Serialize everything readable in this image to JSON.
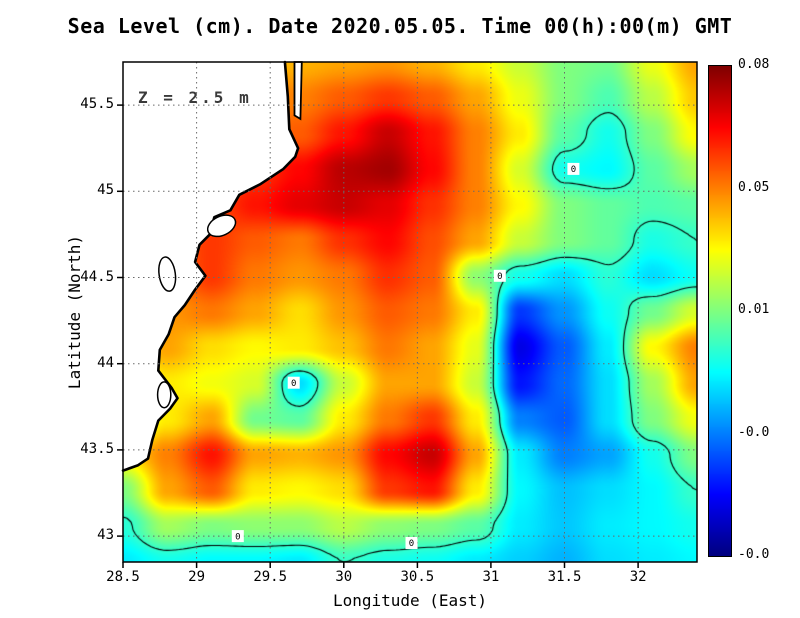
{
  "chart_data": {
    "type": "heatmap",
    "title": "Sea Level (cm). Date 2020.05.05. Time 00(h):00(m) GMT",
    "annotation": "Z = 2.5 m",
    "xlabel": "Longitude (East)",
    "ylabel": "Latitude (North)",
    "x_ticks": [
      "28.5",
      "29",
      "29.5",
      "30",
      "30.5",
      "31",
      "31.5",
      "32"
    ],
    "y_ticks": [
      "45.5",
      "45",
      "44.5",
      "44",
      "43.5",
      "43"
    ],
    "x_range": [
      28.5,
      32.4
    ],
    "y_range": [
      42.85,
      45.75
    ],
    "grid": true,
    "colormap": "jet",
    "colorbar": {
      "labels": [
        "0.08",
        "0.05",
        "0.01",
        "-0.0",
        "-0.0"
      ],
      "vmin": -0.06,
      "vmax": 0.08
    },
    "values": [
      [
        0.035,
        0.035,
        0.035,
        0.036,
        0.038,
        0.04,
        0.042,
        0.038,
        0.03,
        0.02,
        0.01,
        0.008,
        0.025,
        0.04
      ],
      [
        0.035,
        0.038,
        0.04,
        0.042,
        0.045,
        0.05,
        0.055,
        0.05,
        0.04,
        0.025,
        0.01,
        0.003,
        0.018,
        0.035
      ],
      [
        0.038,
        0.04,
        0.042,
        0.045,
        0.05,
        0.06,
        0.07,
        0.06,
        0.045,
        0.03,
        0.005,
        -0.005,
        0.01,
        0.028
      ],
      [
        0.04,
        0.042,
        0.048,
        0.055,
        0.062,
        0.072,
        0.075,
        0.062,
        0.045,
        0.022,
        -0.005,
        -0.008,
        0.005,
        0.015
      ],
      [
        0.042,
        0.045,
        0.052,
        0.06,
        0.066,
        0.07,
        0.066,
        0.056,
        0.045,
        0.028,
        0.01,
        0.006,
        0.003,
        0.005
      ],
      [
        0.045,
        0.048,
        0.055,
        0.05,
        0.046,
        0.056,
        0.062,
        0.052,
        0.04,
        0.02,
        0.01,
        0.006,
        -0.004,
        0.0
      ],
      [
        0.04,
        0.045,
        0.055,
        0.046,
        0.042,
        0.046,
        0.056,
        0.05,
        0.012,
        -0.005,
        -0.012,
        -0.002,
        -0.012,
        -0.006
      ],
      [
        0.032,
        0.042,
        0.046,
        0.04,
        0.032,
        0.042,
        0.05,
        0.046,
        0.03,
        -0.035,
        -0.022,
        -0.006,
        0.008,
        0.022
      ],
      [
        0.03,
        0.04,
        0.032,
        0.028,
        0.03,
        0.036,
        0.046,
        0.04,
        0.024,
        -0.046,
        -0.03,
        -0.01,
        0.028,
        0.045
      ],
      [
        0.018,
        0.03,
        0.026,
        0.022,
        -0.012,
        0.02,
        0.04,
        0.04,
        0.02,
        -0.04,
        -0.028,
        -0.012,
        0.015,
        0.04
      ],
      [
        0.012,
        0.03,
        0.04,
        0.008,
        0.005,
        0.03,
        0.046,
        0.055,
        0.03,
        -0.025,
        -0.03,
        -0.012,
        0.01,
        0.026
      ],
      [
        0.03,
        0.045,
        0.06,
        0.04,
        0.038,
        0.042,
        0.062,
        0.07,
        0.04,
        -0.01,
        -0.025,
        -0.02,
        -0.005,
        0.01
      ],
      [
        0.01,
        0.04,
        0.05,
        0.03,
        0.028,
        0.032,
        0.055,
        0.06,
        0.03,
        -0.008,
        -0.016,
        -0.012,
        -0.008,
        0.0
      ],
      [
        -0.002,
        0.015,
        0.01,
        0.012,
        0.012,
        0.018,
        0.012,
        0.01,
        0.005,
        -0.01,
        -0.015,
        -0.01,
        -0.008,
        -0.005
      ],
      [
        -0.01,
        -0.005,
        -0.008,
        -0.008,
        -0.01,
        0.0,
        -0.004,
        -0.006,
        -0.01,
        -0.014,
        -0.018,
        -0.012,
        -0.01,
        -0.008
      ]
    ],
    "contour_levels": [
      0
    ],
    "contour_label_text": "0",
    "contour_labels": [
      [
        31.56,
        45.13
      ],
      [
        31.06,
        44.51
      ],
      [
        29.66,
        43.89
      ],
      [
        29.28,
        43.0
      ],
      [
        30.46,
        42.96
      ]
    ],
    "coastline": [
      [
        29.6,
        45.75
      ],
      [
        29.62,
        45.55
      ],
      [
        29.63,
        45.36
      ],
      [
        29.69,
        45.25
      ],
      [
        29.67,
        45.2
      ],
      [
        29.59,
        45.13
      ],
      [
        29.43,
        45.04
      ],
      [
        29.29,
        44.98
      ],
      [
        29.23,
        44.89
      ],
      [
        29.12,
        44.85
      ],
      [
        29.09,
        44.75
      ],
      [
        29.02,
        44.69
      ],
      [
        28.99,
        44.59
      ],
      [
        29.06,
        44.51
      ],
      [
        28.99,
        44.43
      ],
      [
        28.92,
        44.34
      ],
      [
        28.85,
        44.27
      ],
      [
        28.81,
        44.17
      ],
      [
        28.75,
        44.08
      ],
      [
        28.74,
        43.96
      ],
      [
        28.83,
        43.86
      ],
      [
        28.87,
        43.8
      ],
      [
        28.82,
        43.74
      ],
      [
        28.74,
        43.67
      ],
      [
        28.7,
        43.56
      ],
      [
        28.67,
        43.45
      ],
      [
        28.6,
        43.41
      ],
      [
        28.5,
        43.38
      ]
    ],
    "islands": [
      [
        [
          29.665,
          45.75
        ],
        [
          29.715,
          45.75
        ],
        [
          29.705,
          45.42
        ],
        [
          29.665,
          45.44
        ]
      ]
    ],
    "lakes": [
      {
        "cx": 29.17,
        "cy": 44.8,
        "rx": 0.1,
        "ry": 0.055,
        "rot": -25
      },
      {
        "cx": 28.8,
        "cy": 44.52,
        "rx": 0.055,
        "ry": 0.1,
        "rot": -8
      },
      {
        "cx": 28.78,
        "cy": 43.82,
        "rx": 0.045,
        "ry": 0.075,
        "rot": 0
      }
    ]
  }
}
